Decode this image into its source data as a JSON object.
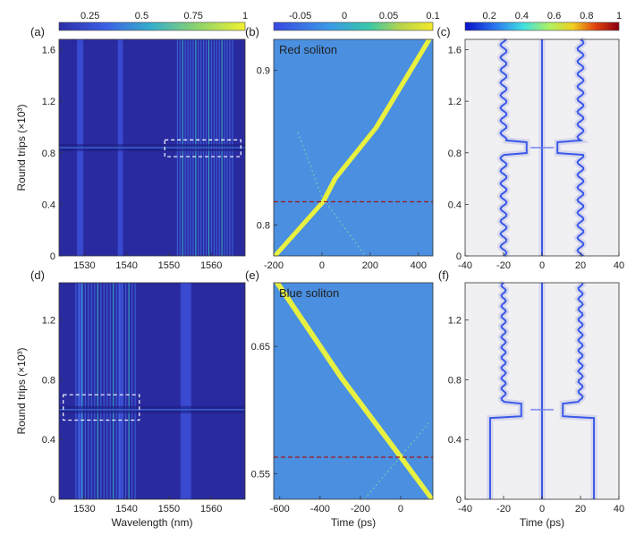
{
  "chart_data": [
    {
      "id": "a",
      "panel_label": "(a)",
      "type": "heatmap",
      "colorbar": {
        "ticks": [
          "0.25",
          "0.5",
          "0.75",
          "1"
        ],
        "range": [
          0.1,
          1
        ]
      },
      "xlim": [
        1524,
        1568
      ],
      "ylim": [
        0,
        1.68
      ],
      "xticks": [
        1530,
        1540,
        1550,
        1560
      ],
      "yticks": [
        0,
        0.4,
        0.8,
        1.2,
        1.6
      ],
      "xlabel": "",
      "ylabel": "Round trips (×10³)",
      "features": [
        {
          "kind": "band",
          "x": 1529,
          "width": 1.5
        },
        {
          "kind": "band",
          "x": 1538.5,
          "width": 1.2
        },
        {
          "kind": "comb",
          "x0": 1552,
          "x1": 1565,
          "lines": 22
        },
        {
          "kind": "breather_row",
          "y": 0.84
        }
      ],
      "highlight_box": {
        "x0": 1549,
        "x1": 1567,
        "y0": 0.77,
        "y1": 0.9
      }
    },
    {
      "id": "b",
      "panel_label": "(b)",
      "type": "heatmap",
      "annotation": "Red soliton",
      "colorbar": {
        "ticks": [
          "-0.05",
          "0",
          "0.05",
          "0.1"
        ],
        "range": [
          -0.08,
          0.1
        ]
      },
      "xlim": [
        -200,
        460
      ],
      "ylim": [
        0.78,
        0.92
      ],
      "xticks": [
        -200,
        0,
        200,
        400
      ],
      "yticks": [
        0.8,
        0.9
      ],
      "traces": [
        {
          "name": "",
          "points": [
            [
              -200,
              0.78
            ],
            [
              0,
              0.815
            ],
            [
              50,
              0.83
            ],
            [
              220,
              0.863
            ],
            [
              440,
              0.92
            ]
          ]
        },
        {
          "name": "",
          "points": [
            [
              -190,
              0.78
            ],
            [
              10,
              0.815
            ],
            [
              60,
              0.83
            ],
            [
              230,
              0.863
            ],
            [
              450,
              0.92
            ]
          ]
        }
      ],
      "faint_trace": {
        "points": [
          [
            -100,
            0.86
          ],
          [
            0,
            0.818
          ],
          [
            180,
            0.78
          ]
        ]
      },
      "dashed_line_y": 0.815
    },
    {
      "id": "c",
      "panel_label": "(c)",
      "type": "line",
      "colorbar": {
        "ticks": [
          "0.2",
          "0.4",
          "0.6",
          "0.8",
          "1"
        ],
        "range": [
          0.05,
          1
        ]
      },
      "xlim": [
        -40,
        40
      ],
      "ylim": [
        0,
        1.68
      ],
      "xticks": [
        -40,
        -20,
        0,
        20,
        40
      ],
      "yticks": [
        0,
        0.4,
        0.8,
        1.2,
        1.6
      ],
      "series": [
        {
          "name": "",
          "base_x": -20,
          "amplitude": 1.6
        },
        {
          "name": "",
          "base_x": 0,
          "amplitude": 0
        },
        {
          "name": "",
          "base_x": 20,
          "amplitude": 1.6
        }
      ],
      "collision_y": 0.84
    },
    {
      "id": "d",
      "panel_label": "(d)",
      "type": "heatmap",
      "xlim": [
        1524,
        1568
      ],
      "ylim": [
        0,
        1.45
      ],
      "xticks": [
        1530,
        1540,
        1550,
        1560
      ],
      "yticks": [
        0,
        0.4,
        0.8,
        1.2
      ],
      "xlabel": "Wavelength (nm)",
      "ylabel": "Round trips (×10³)",
      "features": [
        {
          "kind": "band",
          "x": 1529,
          "width": 1.2
        },
        {
          "kind": "band",
          "x": 1538.5,
          "width": 1.0
        },
        {
          "kind": "comb",
          "x0": 1528,
          "x1": 1542,
          "lines": 20
        },
        {
          "kind": "band",
          "x": 1554,
          "width": 2.5
        },
        {
          "kind": "breather_row",
          "y": 0.6
        }
      ],
      "highlight_box": {
        "x0": 1525,
        "x1": 1543,
        "y0": 0.53,
        "y1": 0.7
      }
    },
    {
      "id": "e",
      "panel_label": "(e)",
      "type": "heatmap",
      "annotation": "Blue soliton",
      "xlim": [
        -630,
        160
      ],
      "ylim": [
        0.53,
        0.7
      ],
      "xticks": [
        -600,
        -400,
        -200,
        0
      ],
      "yticks": [
        0.55,
        0.65
      ],
      "xlabel": "Time (ps)",
      "traces": [
        {
          "name": "",
          "points": [
            [
              -620,
              0.7
            ],
            [
              -300,
              0.625
            ],
            [
              -30,
              0.568
            ],
            [
              150,
              0.53
            ]
          ]
        },
        {
          "name": "",
          "points": [
            [
              -605,
              0.7
            ],
            [
              -285,
              0.625
            ],
            [
              -15,
              0.568
            ],
            [
              162,
              0.53
            ]
          ]
        }
      ],
      "faint_trace": {
        "points": [
          [
            -180,
            0.53
          ],
          [
            140,
            0.59
          ]
        ]
      },
      "dashed_line_y": 0.563
    },
    {
      "id": "f",
      "panel_label": "(f)",
      "type": "line",
      "xlim": [
        -40,
        40
      ],
      "ylim": [
        0,
        1.45
      ],
      "xticks": [
        -40,
        -20,
        0,
        20,
        40
      ],
      "yticks": [
        0,
        0.4,
        0.8,
        1.2
      ],
      "xlabel": "Time (ps)",
      "series": [
        {
          "name": "",
          "base_x": -27,
          "amplitude": 0
        },
        {
          "name": "",
          "base_x": 0,
          "amplitude": 0
        },
        {
          "name": "",
          "base_x": 27,
          "amplitude": 0
        }
      ],
      "collision_y": 0.6
    }
  ]
}
